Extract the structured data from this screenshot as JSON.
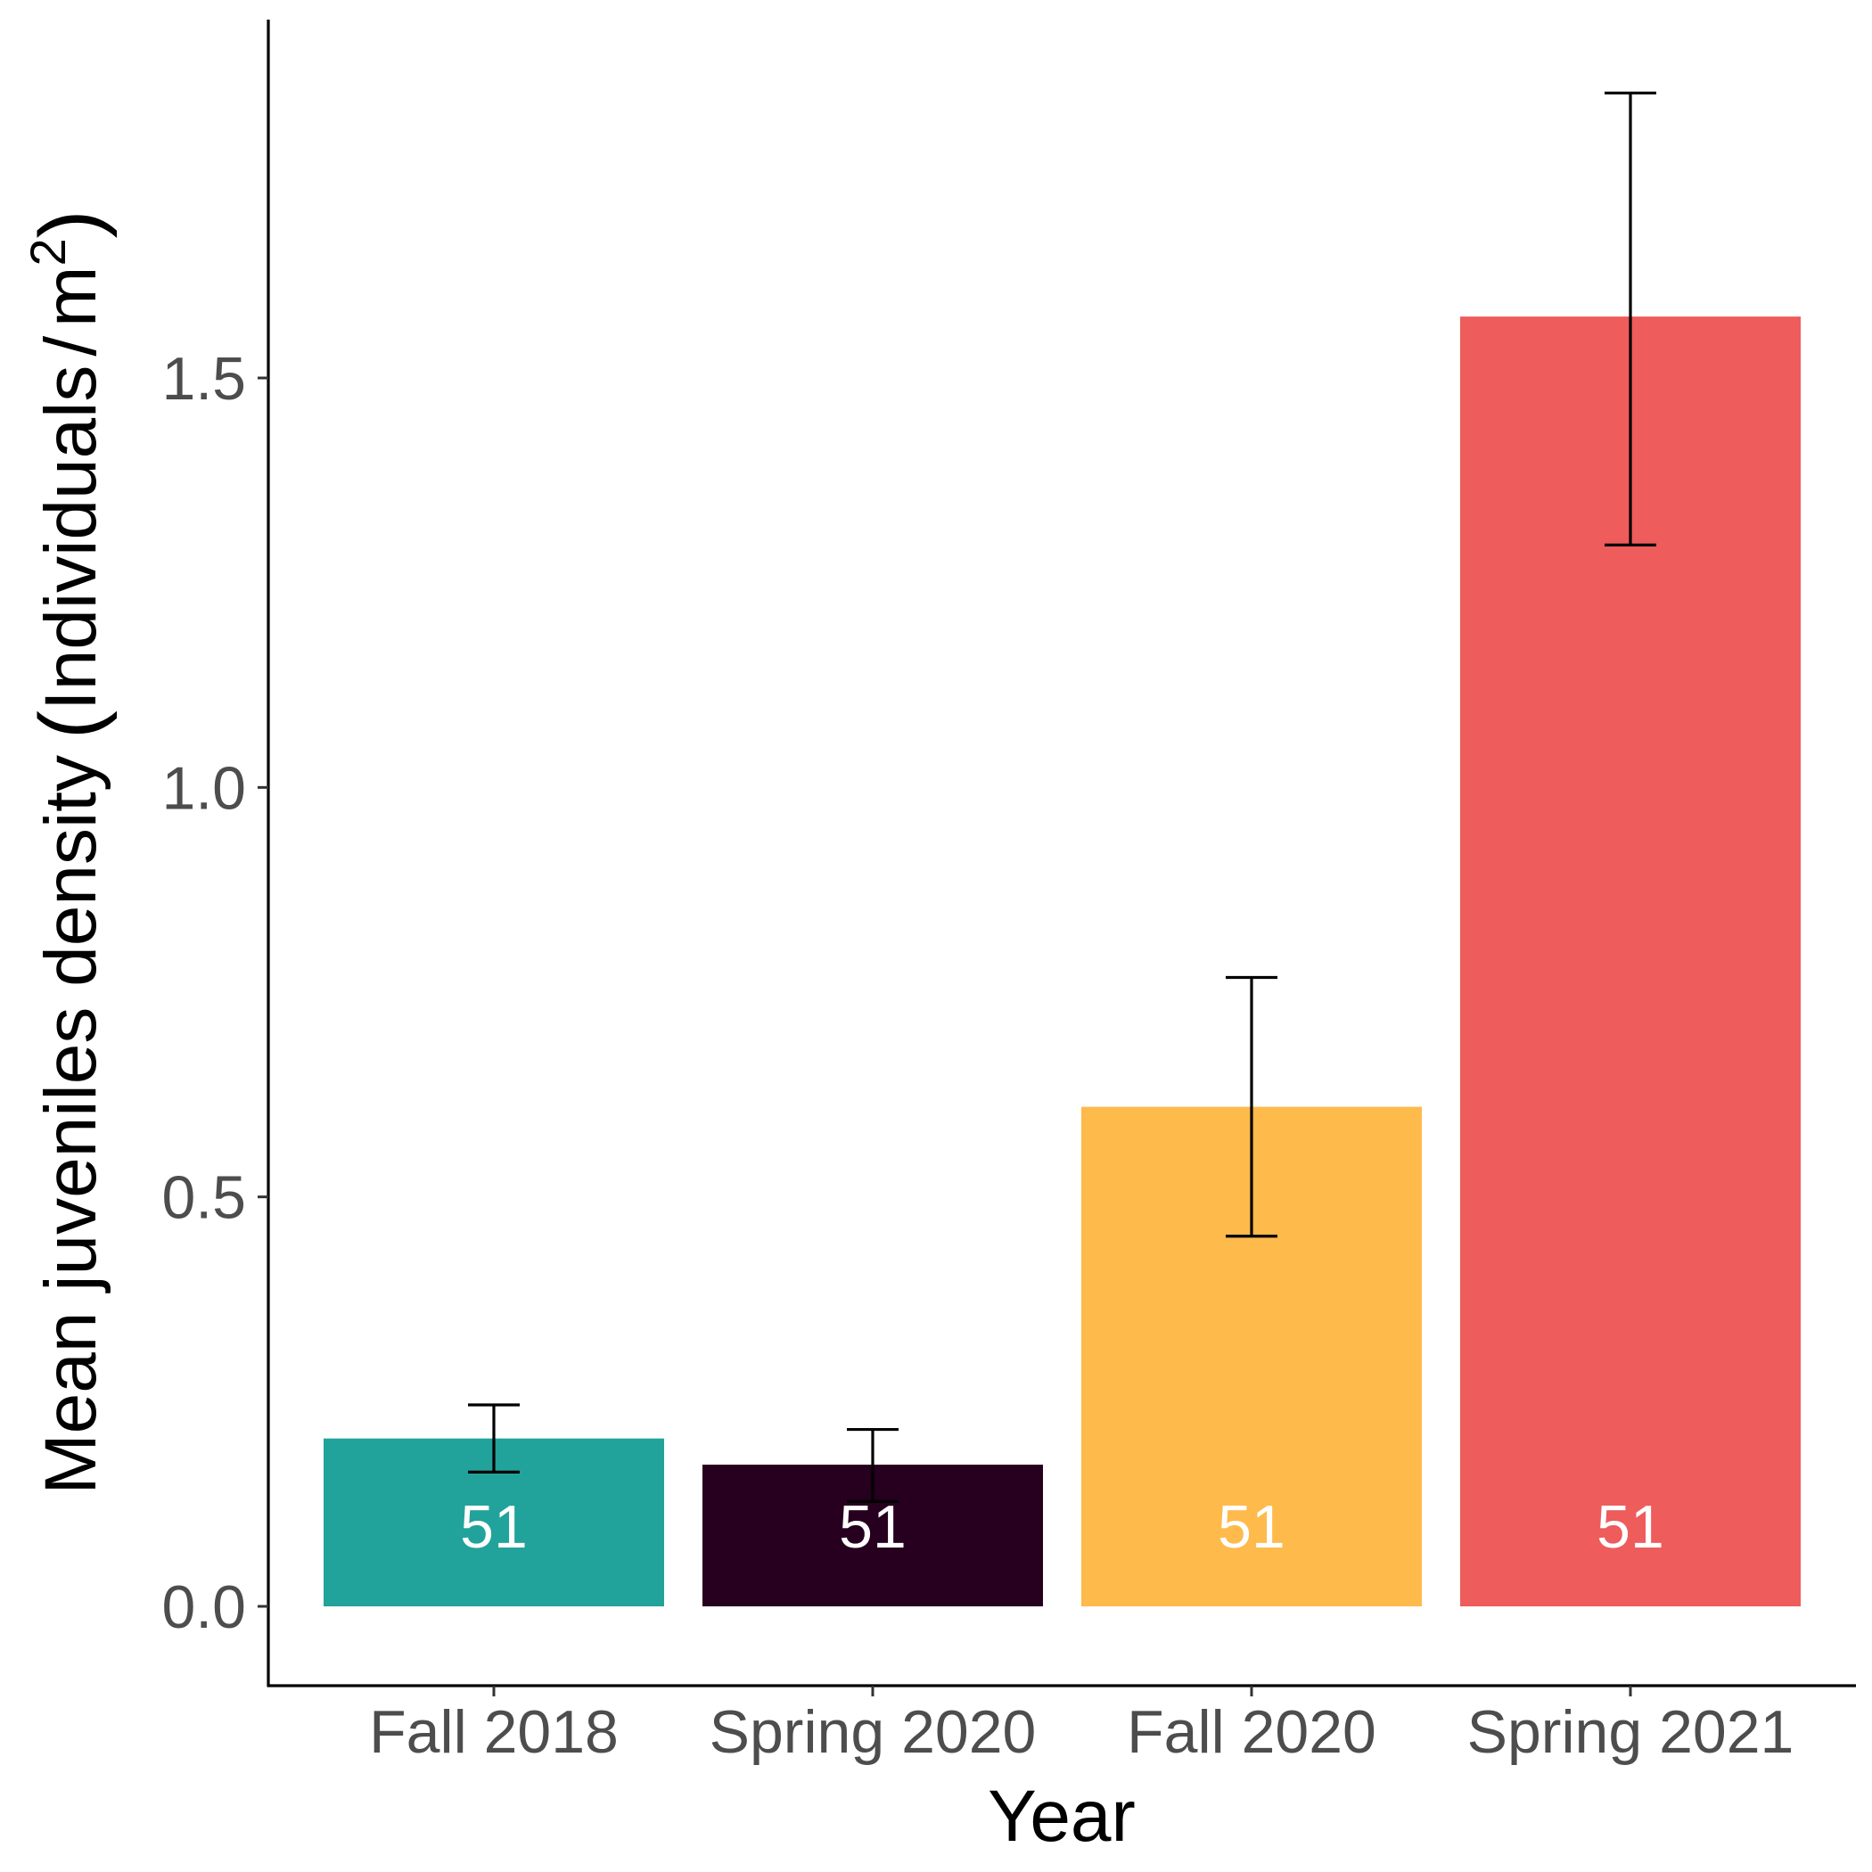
{
  "chart_data": {
    "type": "bar",
    "categories": [
      "Fall 2018",
      "Spring 2020",
      "Fall 2020",
      "Spring 2021"
    ],
    "values": [
      0.205,
      0.173,
      0.61,
      1.575
    ],
    "error_low": [
      0.164,
      0.128,
      0.452,
      1.296
    ],
    "error_high": [
      0.246,
      0.216,
      0.768,
      1.848
    ],
    "bar_labels": [
      "51",
      "51",
      "51",
      "51"
    ],
    "colors": [
      "#21A39B",
      "#26001E",
      "#FEBA4B",
      "#EE5C5C"
    ],
    "xlabel": "Year",
    "ylabel": "Mean juveniles density (Individuals / m²)",
    "ylabel_parts": {
      "main": "Mean juveniles density",
      "open_paren": "(",
      "unit": "Individuals",
      "slash": "/",
      "unit_denominator": "m",
      "superscript": "2",
      "close_paren": ")"
    },
    "ylim": [
      -0.09,
      1.94
    ],
    "yticks": [
      0.0,
      0.5,
      1.0,
      1.5
    ],
    "ytick_labels": [
      "0.0",
      "0.5",
      "1.0",
      "1.5"
    ],
    "grid": false,
    "legend": "none"
  }
}
